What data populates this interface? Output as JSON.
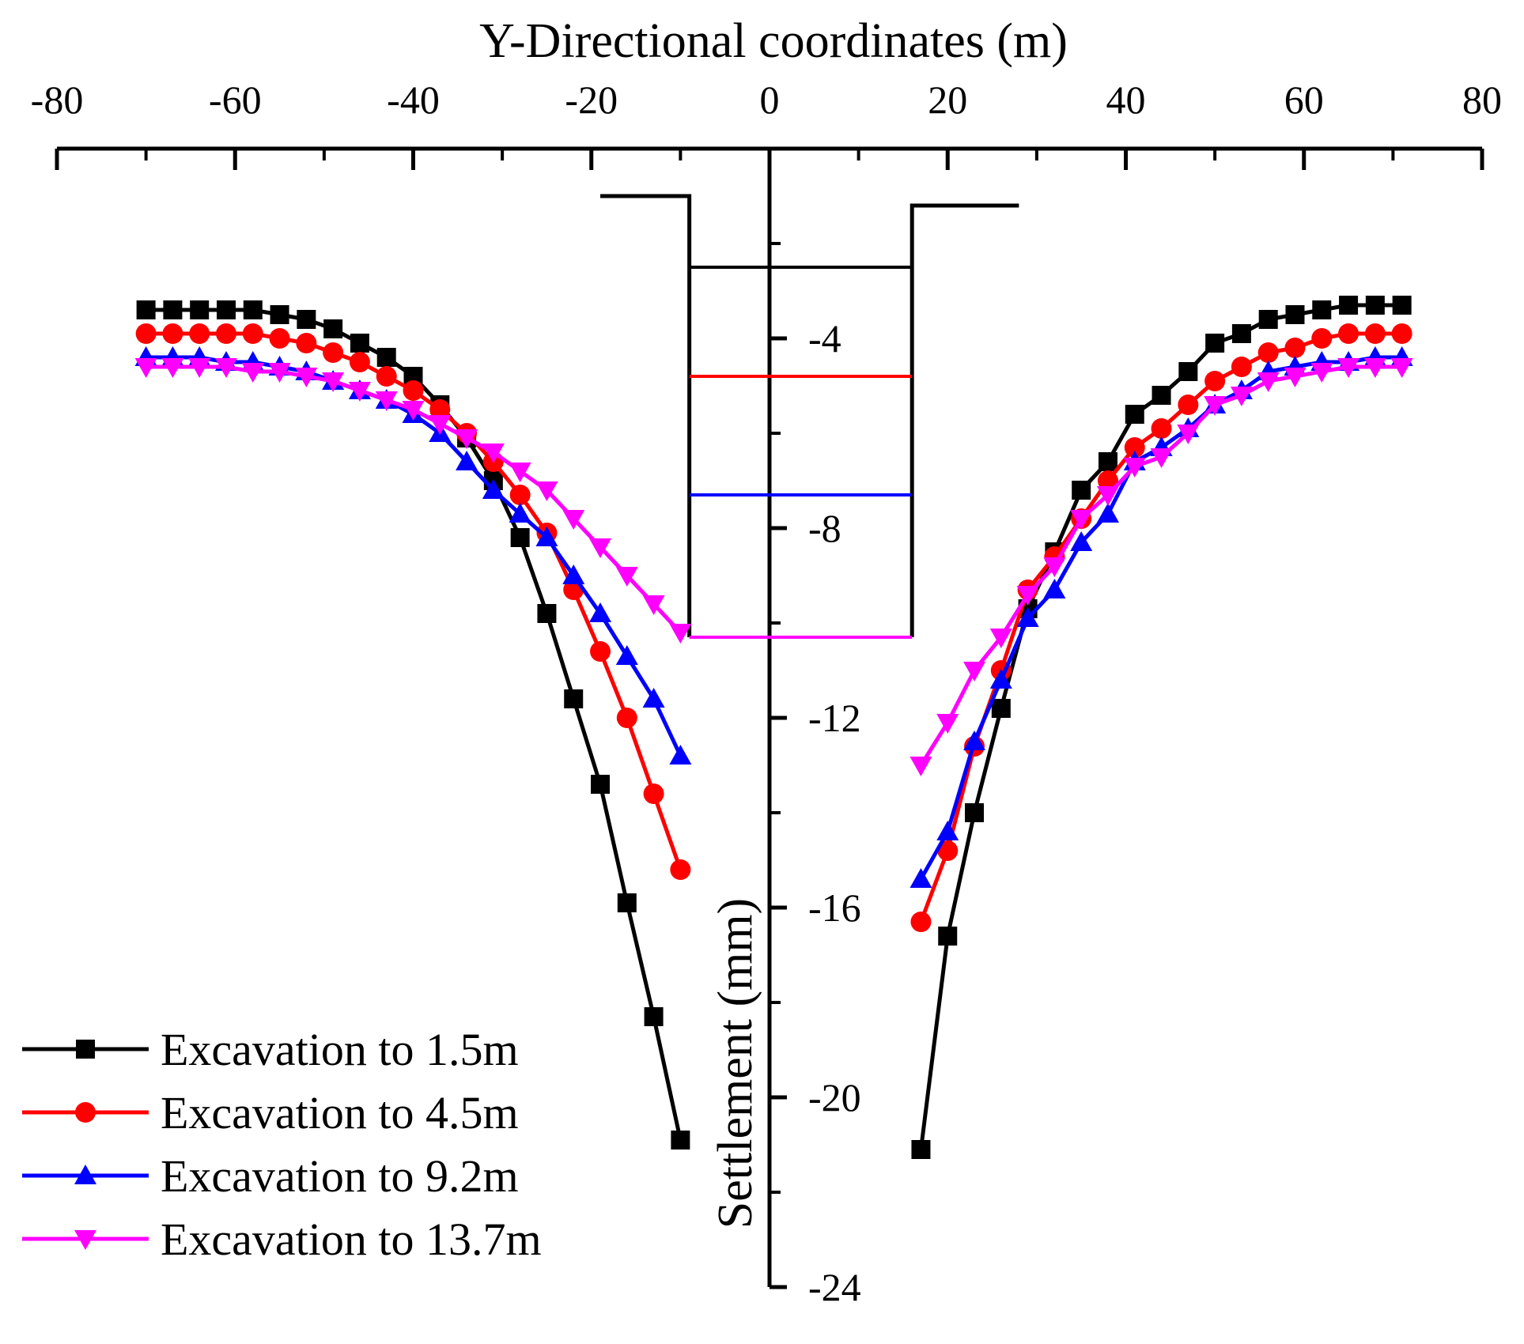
{
  "chart_data": {
    "type": "line",
    "title": "",
    "xlabel": "Y-Directional coordinates (m)",
    "ylabel": "Settlement (mm)",
    "xlim": [
      -80,
      80
    ],
    "ylim": [
      -24,
      0
    ],
    "x_ticks": [
      -80,
      -60,
      -40,
      -20,
      0,
      20,
      40,
      60,
      80
    ],
    "x_tick_labels": [
      "-80",
      "-60",
      "-40",
      "-20",
      "0",
      "20",
      "40",
      "60",
      "80"
    ],
    "y_tick_labels": [
      {
        "value": -4,
        "label": "-4"
      },
      {
        "value": -8,
        "label": "-8"
      },
      {
        "value": -12,
        "label": "-12"
      },
      {
        "value": -16,
        "label": "-16"
      },
      {
        "value": -20,
        "label": "-20"
      },
      {
        "value": -24,
        "label": "-24"
      }
    ],
    "y_minor_ticks": [
      -2,
      -6,
      -10,
      -14,
      -18,
      -22
    ],
    "legend_position": "bottom-left",
    "series": [
      {
        "name": "Excavation to 1.5m",
        "color": "#000000",
        "marker": "square",
        "left": {
          "x": [
            -70,
            -67,
            -64,
            -61,
            -58,
            -55,
            -52,
            -49,
            -46,
            -43,
            -40,
            -37,
            -34,
            -31,
            -28,
            -25,
            -22,
            -19,
            -16,
            -13,
            -10
          ],
          "y": [
            -3.4,
            -3.4,
            -3.4,
            -3.4,
            -3.4,
            -3.5,
            -3.6,
            -3.8,
            -4.1,
            -4.4,
            -4.8,
            -5.4,
            -6.1,
            -7.0,
            -8.2,
            -9.8,
            -11.6,
            -13.4,
            -15.9,
            -18.3,
            -20.9
          ]
        },
        "right": {
          "x": [
            17,
            20,
            23,
            26,
            29,
            32,
            35,
            38,
            41,
            44,
            47,
            50,
            53,
            56,
            59,
            62,
            65,
            68,
            71
          ],
          "y": [
            -21.1,
            -16.6,
            -14.0,
            -11.8,
            -9.7,
            -8.5,
            -7.2,
            -6.6,
            -5.6,
            -5.2,
            -4.7,
            -4.1,
            -3.9,
            -3.6,
            -3.5,
            -3.4,
            -3.3,
            -3.3,
            -3.3
          ]
        }
      },
      {
        "name": "Excavation to 4.5m",
        "color": "#ff0000",
        "marker": "circle",
        "left": {
          "x": [
            -70,
            -67,
            -64,
            -61,
            -58,
            -55,
            -52,
            -49,
            -46,
            -43,
            -40,
            -37,
            -34,
            -31,
            -28,
            -25,
            -22,
            -19,
            -16,
            -13,
            -10
          ],
          "y": [
            -3.9,
            -3.9,
            -3.9,
            -3.9,
            -3.9,
            -4.0,
            -4.1,
            -4.3,
            -4.5,
            -4.8,
            -5.1,
            -5.5,
            -6.0,
            -6.6,
            -7.3,
            -8.1,
            -9.3,
            -10.6,
            -12.0,
            -13.6,
            -15.2
          ]
        },
        "right": {
          "x": [
            17,
            20,
            23,
            26,
            29,
            32,
            35,
            38,
            41,
            44,
            47,
            50,
            53,
            56,
            59,
            62,
            65,
            68,
            71
          ],
          "y": [
            -16.3,
            -14.8,
            -12.6,
            -11.0,
            -9.3,
            -8.6,
            -7.8,
            -7.0,
            -6.3,
            -5.9,
            -5.4,
            -4.9,
            -4.6,
            -4.3,
            -4.2,
            -4.0,
            -3.9,
            -3.9,
            -3.9
          ]
        }
      },
      {
        "name": "Excavation to 9.2m",
        "color": "#0000ff",
        "marker": "triangle-up",
        "left": {
          "x": [
            -70,
            -67,
            -64,
            -61,
            -58,
            -55,
            -52,
            -49,
            -46,
            -43,
            -40,
            -37,
            -34,
            -31,
            -28,
            -25,
            -22,
            -19,
            -16,
            -13,
            -10
          ],
          "y": [
            -4.4,
            -4.4,
            -4.4,
            -4.5,
            -4.5,
            -4.6,
            -4.7,
            -4.9,
            -5.1,
            -5.3,
            -5.6,
            -6.0,
            -6.6,
            -7.2,
            -7.7,
            -8.2,
            -9.0,
            -9.8,
            -10.7,
            -11.6,
            -12.8
          ]
        },
        "right": {
          "x": [
            17,
            20,
            23,
            26,
            29,
            32,
            35,
            38,
            41,
            44,
            47,
            50,
            53,
            56,
            59,
            62,
            65,
            68,
            71
          ],
          "y": [
            -15.4,
            -14.4,
            -12.5,
            -11.2,
            -9.9,
            -9.3,
            -8.3,
            -7.7,
            -6.6,
            -6.3,
            -5.9,
            -5.4,
            -5.1,
            -4.7,
            -4.6,
            -4.5,
            -4.5,
            -4.4,
            -4.4
          ]
        }
      },
      {
        "name": "Excavation to 13.7m",
        "color": "#ff00ff",
        "marker": "triangle-down",
        "left": {
          "x": [
            -70,
            -67,
            -64,
            -61,
            -58,
            -55,
            -52,
            -49,
            -46,
            -43,
            -40,
            -37,
            -34,
            -31,
            -28,
            -25,
            -22,
            -19,
            -16,
            -13,
            -10
          ],
          "y": [
            -4.6,
            -4.6,
            -4.6,
            -4.6,
            -4.7,
            -4.7,
            -4.8,
            -4.9,
            -5.1,
            -5.3,
            -5.5,
            -5.8,
            -6.1,
            -6.4,
            -6.8,
            -7.2,
            -7.8,
            -8.4,
            -9.0,
            -9.6,
            -10.2
          ]
        },
        "right": {
          "x": [
            17,
            20,
            23,
            26,
            29,
            32,
            35,
            38,
            41,
            44,
            47,
            50,
            53,
            56,
            59,
            62,
            65,
            68,
            71
          ],
          "y": [
            -13.0,
            -12.1,
            -11.0,
            -10.3,
            -9.4,
            -8.8,
            -7.8,
            -7.3,
            -6.7,
            -6.5,
            -6.0,
            -5.4,
            -5.2,
            -4.9,
            -4.8,
            -4.7,
            -4.6,
            -4.6,
            -4.6
          ]
        }
      }
    ],
    "annotations": {
      "ground_left": {
        "x": [
          -19,
          -9
        ],
        "y": -1.0
      },
      "ground_right": {
        "x": [
          16,
          28
        ],
        "y": -1.2
      },
      "pit_walls_x": [
        -9,
        16
      ],
      "pit_bottom_y": -10.3,
      "excavation_levels": [
        {
          "y": -2.5,
          "color": "#000000"
        },
        {
          "y": -4.8,
          "color": "#ff0000"
        },
        {
          "y": -7.3,
          "color": "#0000ff"
        },
        {
          "y": -10.3,
          "color": "#ff00ff"
        }
      ]
    }
  }
}
